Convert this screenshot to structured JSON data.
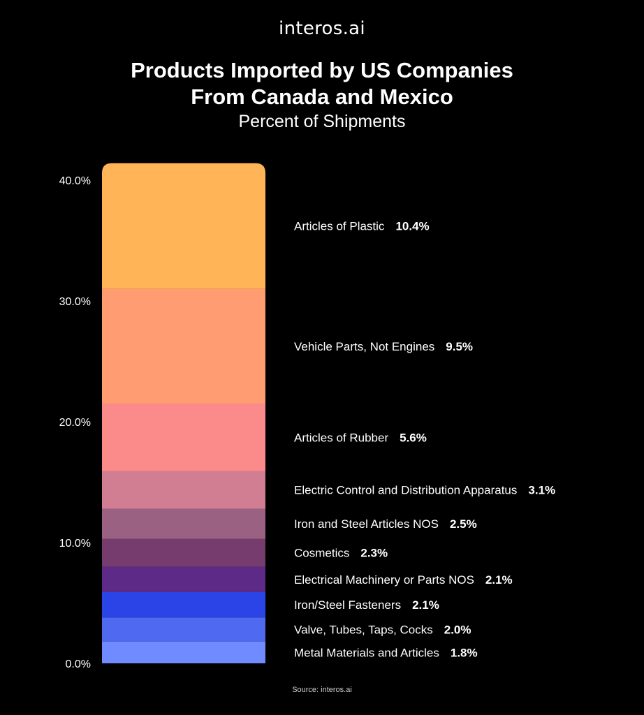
{
  "brand": {
    "logo_text": "interos.ai"
  },
  "title_line1": "Products Imported by US Companies",
  "title_line2": "From Canada and Mexico",
  "subtitle": "Percent of Shipments",
  "source": "Source: interos.ai",
  "chart_data": {
    "type": "bar",
    "stacked": true,
    "title": "Products Imported by US Companies From Canada and Mexico",
    "subtitle": "Percent of Shipments",
    "ylim": [
      0,
      41.4
    ],
    "yticks": [
      "0.0%",
      "10.0%",
      "20.0%",
      "30.0%",
      "40.0%"
    ],
    "ytick_values": [
      0,
      10,
      20,
      30,
      40
    ],
    "grid": false,
    "series": [
      {
        "name": "Metal Materials and Articles",
        "value": 1.8,
        "label": "1.8%",
        "color": "#6F8BFF"
      },
      {
        "name": "Valve, Tubes, Taps, Cocks",
        "value": 2.0,
        "label": "2.0%",
        "color": "#4F6AF0"
      },
      {
        "name": "Iron/Steel Fasteners",
        "value": 2.1,
        "label": "2.1%",
        "color": "#2A44E8"
      },
      {
        "name": "Electrical Machinery or Parts NOS",
        "value": 2.1,
        "label": "2.1%",
        "color": "#5E2A88"
      },
      {
        "name": "Cosmetics",
        "value": 2.3,
        "label": "2.3%",
        "color": "#763C6E"
      },
      {
        "name": "Iron and Steel Articles NOS",
        "value": 2.5,
        "label": "2.5%",
        "color": "#9B6182"
      },
      {
        "name": "Electric Control and Distribution Apparatus",
        "value": 3.1,
        "label": "3.1%",
        "color": "#D17E93"
      },
      {
        "name": "Articles of Rubber",
        "value": 5.6,
        "label": "5.6%",
        "color": "#FB8B8A"
      },
      {
        "name": "Vehicle Parts, Not Engines",
        "value": 9.5,
        "label": "9.5%",
        "color": "#FF9C72"
      },
      {
        "name": "Articles of Plastic",
        "value": 10.4,
        "label": "10.4%",
        "color": "#FFB457"
      }
    ]
  }
}
